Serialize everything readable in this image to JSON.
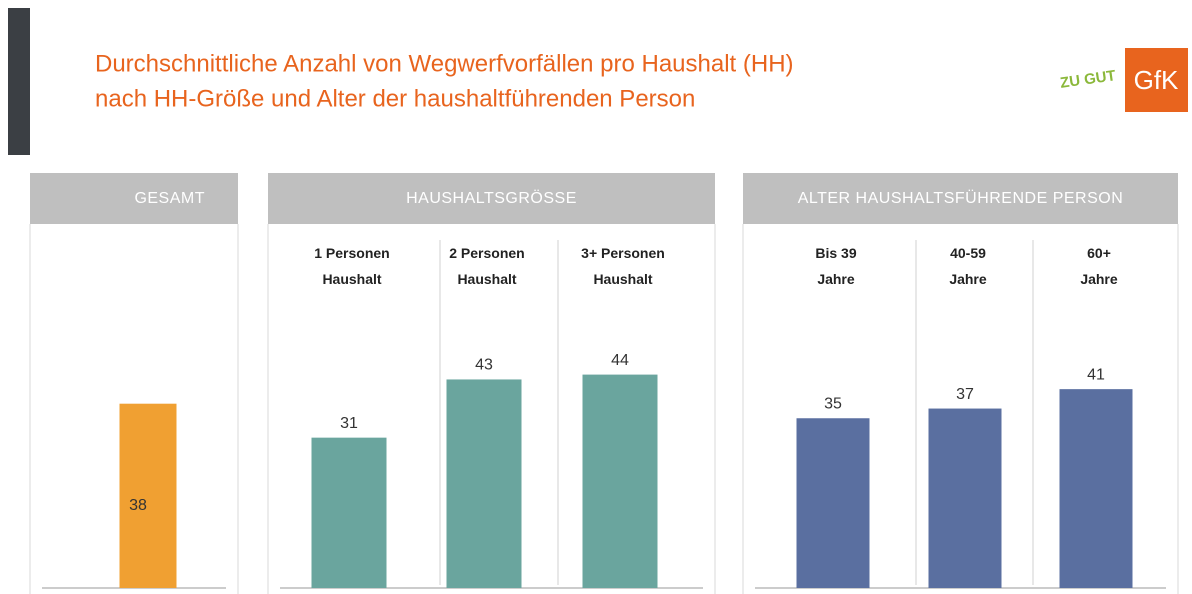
{
  "title_lines": [
    "Durchschnittliche Anzahl von Wegwerfvorfällen pro Haushalt (HH)",
    "nach HH-Größe und Alter der haushaltführenden Person"
  ],
  "logos": {
    "campaign": "ZU GUT",
    "company": "GfK"
  },
  "chart_data": [
    {
      "type": "bar",
      "title": "GESAMT",
      "categories": [
        null
      ],
      "values": [
        38
      ],
      "color": "#f0a032"
    },
    {
      "type": "bar",
      "title": "HAUSHALTSGRÖSSE",
      "categories": [
        "1 Personen\nHaushalt",
        "2 Personen\nHaushalt",
        "3+ Personen\nHaushalt"
      ],
      "values": [
        31,
        43,
        44
      ],
      "color": "#6aa59e"
    },
    {
      "type": "bar",
      "title": "ALTER HAUSHALTSFÜHRENDE PERSON",
      "categories": [
        "Bis 39\nJahre",
        "40-59\nJahre",
        "60+\nJahre"
      ],
      "values": [
        35,
        37,
        41
      ],
      "color": "#5a6fa0"
    }
  ]
}
